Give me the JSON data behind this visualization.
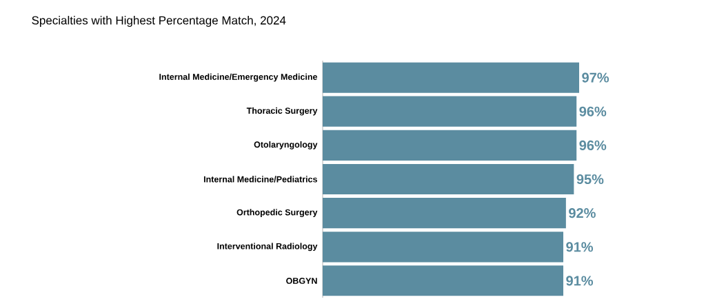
{
  "chart_data": {
    "type": "bar",
    "orientation": "horizontal",
    "title": "Specialties with Highest Percentage Match, 2024",
    "categories": [
      "Internal Medicine/Emergency Medicine",
      "Thoracic Surgery",
      "Otolaryngology",
      "Internal Medicine/Pediatrics",
      "Orthopedic Surgery",
      "Interventional Radiology",
      "OBGYN"
    ],
    "values": [
      97,
      96,
      96,
      95,
      92,
      91,
      91
    ],
    "value_labels": [
      "97%",
      "96%",
      "96%",
      "95%",
      "92%",
      "91%",
      "91%"
    ],
    "color": "#5b8ca0"
  }
}
